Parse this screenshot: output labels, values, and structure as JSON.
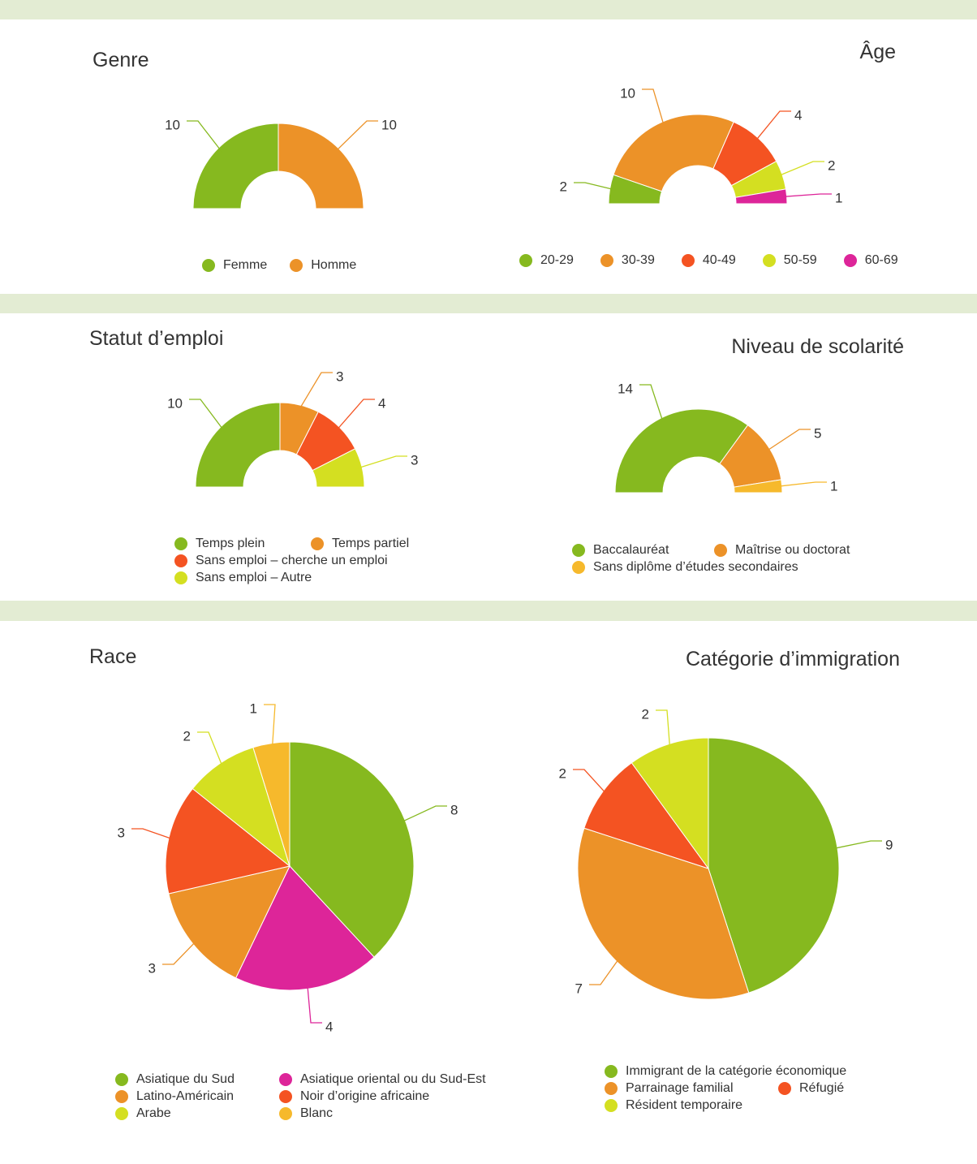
{
  "colors": {
    "green": "#86b91f",
    "orange": "#ec9228",
    "red": "#f45322",
    "lime": "#d4df21",
    "magenta": "#dd2599",
    "yellow": "#f6b92c",
    "band": "#e3ecd3"
  },
  "chart_data": [
    {
      "id": "genre",
      "type": "pie",
      "style": "half-donut",
      "title": "Genre",
      "categories": [
        "Femme",
        "Homme"
      ],
      "values": [
        10,
        10
      ],
      "colors": [
        "#86b91f",
        "#ec9228"
      ],
      "legend": "bottom"
    },
    {
      "id": "age",
      "type": "pie",
      "style": "half-donut",
      "title": "Âge",
      "categories": [
        "20-29",
        "30-39",
        "40-49",
        "50-59",
        "60-69"
      ],
      "values": [
        2,
        10,
        4,
        2,
        1
      ],
      "colors": [
        "#86b91f",
        "#ec9228",
        "#f45322",
        "#d4df21",
        "#dd2599"
      ],
      "legend": "bottom"
    },
    {
      "id": "emploi",
      "type": "pie",
      "style": "half-donut",
      "title": "Statut d’emploi",
      "categories": [
        "Temps plein",
        "Temps partiel",
        "Sans emploi – cherche un emploi",
        "Sans emploi – Autre"
      ],
      "values": [
        10,
        3,
        4,
        3
      ],
      "colors": [
        "#86b91f",
        "#ec9228",
        "#f45322",
        "#d4df21"
      ],
      "legend": "bottom"
    },
    {
      "id": "scolarite",
      "type": "pie",
      "style": "half-donut",
      "title": "Niveau de scolarité",
      "categories": [
        "Baccalauréat",
        "Maîtrise ou doctorat",
        "Sans diplôme d’études secondaires"
      ],
      "values": [
        14,
        5,
        1
      ],
      "colors": [
        "#86b91f",
        "#ec9228",
        "#f6b92c"
      ],
      "legend": "bottom"
    },
    {
      "id": "race",
      "type": "pie",
      "title": "Race",
      "categories": [
        "Asiatique du Sud",
        "Asiatique oriental ou du Sud-Est",
        "Latino-Américain",
        "Noir d’origine africaine",
        "Arabe",
        "Blanc"
      ],
      "values": [
        8,
        4,
        3,
        3,
        2,
        1
      ],
      "colors": [
        "#86b91f",
        "#dd2599",
        "#ec9228",
        "#f45322",
        "#d4df21",
        "#f6b92c"
      ],
      "legend": "bottom"
    },
    {
      "id": "immigration",
      "type": "pie",
      "title": "Catégorie d’immigration",
      "categories": [
        "Immigrant de la catégorie économique",
        "Parrainage familial",
        "Réfugié",
        "Résident temporaire"
      ],
      "values": [
        9,
        7,
        2,
        2
      ],
      "colors": [
        "#86b91f",
        "#ec9228",
        "#f45322",
        "#d4df21"
      ],
      "legend": "bottom"
    }
  ]
}
